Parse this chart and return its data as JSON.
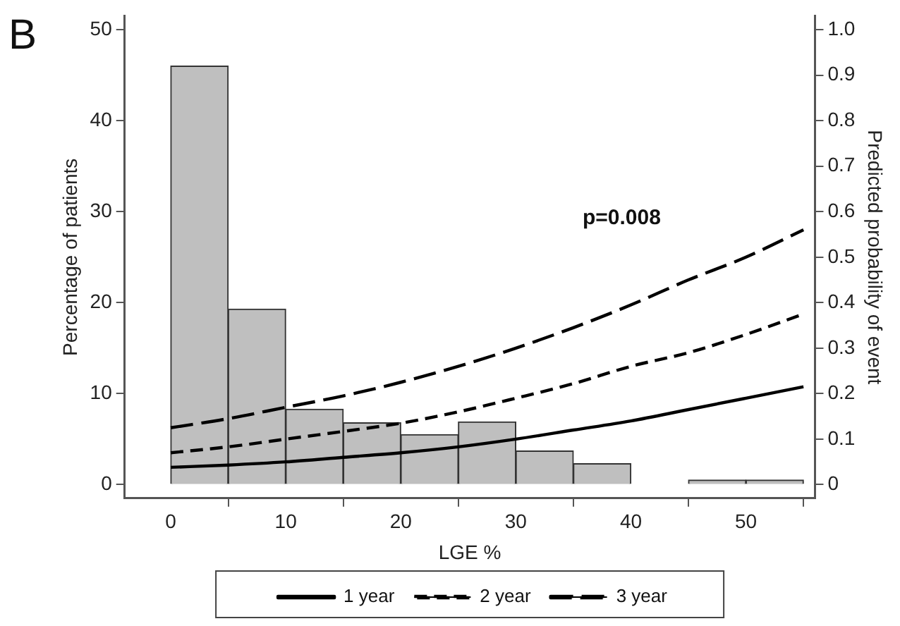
{
  "chart_data": {
    "type": "histogram",
    "xlabel": "LGE %",
    "ylabel": "Percentage of patients",
    "y2label": "Predicted probability of event",
    "annotations": [
      "B",
      "p=0.008"
    ],
    "bins": [
      0,
      5,
      10,
      15,
      20,
      25,
      30,
      35,
      40,
      45,
      50,
      55
    ],
    "values": [
      46,
      19.3,
      8.3,
      6.8,
      5.5,
      6.9,
      3.7,
      2.3,
      0,
      0.5,
      0.5
    ],
    "color": "#bfbfbf",
    "series": [
      {
        "name": "1 year",
        "type": "line",
        "axis": "y2",
        "line_style": "solid",
        "color": "#000000",
        "x": [
          0,
          5,
          10,
          15,
          20,
          25,
          30,
          35,
          40,
          45,
          50,
          55
        ],
        "values": [
          0.038,
          0.043,
          0.05,
          0.06,
          0.07,
          0.083,
          0.1,
          0.12,
          0.14,
          0.165,
          0.19,
          0.215
        ]
      },
      {
        "name": "2 year",
        "type": "line",
        "axis": "y2",
        "line_style": "dashed",
        "color": "#000000",
        "x": [
          0,
          5,
          10,
          15,
          20,
          25,
          30,
          35,
          40,
          45,
          50,
          55
        ],
        "values": [
          0.07,
          0.083,
          0.1,
          0.117,
          0.135,
          0.16,
          0.19,
          0.222,
          0.26,
          0.29,
          0.33,
          0.375
        ]
      },
      {
        "name": "3 year",
        "type": "line",
        "axis": "y2",
        "line_style": "longdash",
        "color": "#000000",
        "x": [
          0,
          5,
          10,
          15,
          20,
          25,
          30,
          35,
          40,
          45,
          50,
          55
        ],
        "values": [
          0.125,
          0.145,
          0.17,
          0.195,
          0.225,
          0.26,
          0.3,
          0.345,
          0.395,
          0.45,
          0.5,
          0.56
        ]
      }
    ],
    "xlim": [
      -4,
      56
    ],
    "xticks": [
      0,
      10,
      20,
      30,
      40,
      50
    ],
    "ylim": [
      -1.5,
      51.5
    ],
    "yticks": [
      0,
      10,
      20,
      30,
      40,
      50
    ],
    "y2lim": [
      -0.03,
      1.03
    ],
    "y2ticks": [
      0,
      {
        "value": 0.1,
        "label": "0.1"
      },
      {
        "value": 0.2,
        "label": "0.2"
      },
      {
        "value": 0.3,
        "label": "0.3"
      },
      {
        "value": 0.4,
        "label": "0.4"
      },
      {
        "value": 0.5,
        "label": "0.5"
      },
      {
        "value": 0.6,
        "label": "0.6"
      },
      {
        "value": 0.7,
        "label": "0.7"
      },
      {
        "value": 0.8,
        "label": "0.8"
      },
      {
        "value": 0.9,
        "label": "0.9"
      },
      {
        "value": 1,
        "label": "1.0"
      }
    ],
    "grid": false,
    "legend": "bottom",
    "marker": "none"
  }
}
